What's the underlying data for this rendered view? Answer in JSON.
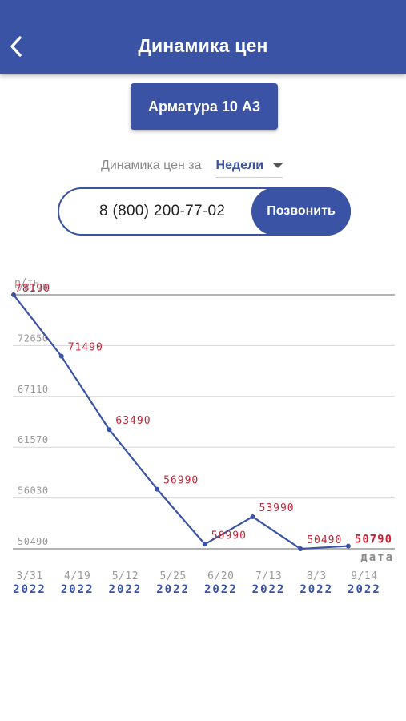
{
  "header": {
    "title": "Динамика цен",
    "back_icon": "chevron-left-icon"
  },
  "product": {
    "label": "Арматура 10 А3"
  },
  "period": {
    "label": "Динамика цен за",
    "value": "Недели"
  },
  "call": {
    "phone": "8 (800) 200-77-02",
    "button": "Позвонить"
  },
  "colors": {
    "primary": "#3a53a4",
    "value_label": "#c0283a",
    "axis_text": "#9a9a9a"
  },
  "chart_data": {
    "type": "line",
    "ylabel": "р/тн",
    "xlabel": "дата",
    "yticks": [
      78190,
      72650,
      67110,
      61570,
      56030,
      50490
    ],
    "ylim": [
      50490,
      78190
    ],
    "categories": [
      "3/31",
      "4/19",
      "5/12",
      "5/25",
      "6/20",
      "7/13",
      "8/3",
      "9/14"
    ],
    "years": [
      "2022",
      "2022",
      "2022",
      "2022",
      "2022",
      "2022",
      "2022",
      "2022"
    ],
    "values": [
      78190,
      71490,
      63490,
      56990,
      50990,
      53990,
      50490,
      50790
    ],
    "grid": true
  }
}
